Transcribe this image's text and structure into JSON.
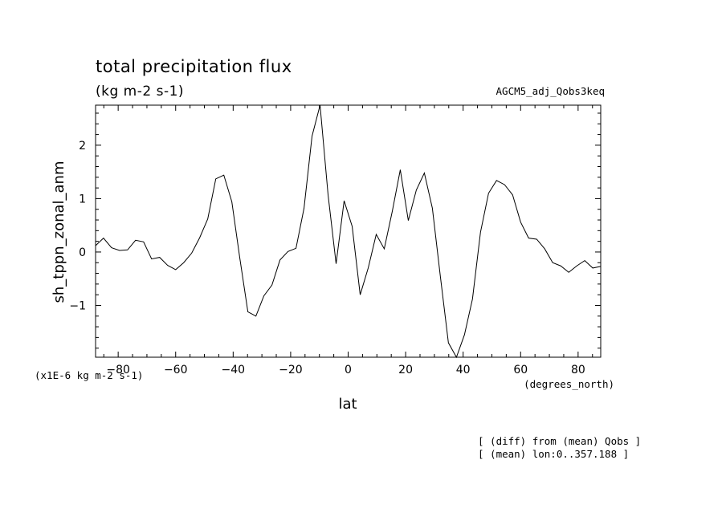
{
  "header": {
    "title": "total precipitation flux",
    "units": "(kg m-2 s-1)",
    "dataset": "AGCM5_adj_Qobs3keq"
  },
  "axes": {
    "ylabel": "sh_tppn_zonal_anm",
    "xlabel": "lat",
    "x_unit": "(degrees_north)",
    "y_scale_note": "(x1E-6 kg m-2 s-1)"
  },
  "notes": [
    "[ (diff) from (mean) Qobs ]",
    "[ (mean) lon:0..357.188 ]"
  ],
  "chart_data": {
    "type": "line",
    "title": "total precipitation flux",
    "xlabel": "lat",
    "ylabel": "sh_tppn_zonal_anm",
    "xlim": [
      -87.8638,
      87.8638
    ],
    "ylim": [
      -1.97,
      2.75
    ],
    "x_ticks": [
      -80,
      -60,
      -40,
      -20,
      0,
      20,
      40,
      60,
      80
    ],
    "y_ticks": [
      -1,
      0,
      1,
      2
    ],
    "grid": false,
    "series": [
      {
        "x": [
          -87.86,
          -85.1,
          -82.31,
          -79.53,
          -76.74,
          -73.95,
          -71.16,
          -68.37,
          -65.58,
          -62.79,
          -60.0,
          -57.21,
          -54.42,
          -51.63,
          -48.84,
          -46.04,
          -43.25,
          -40.46,
          -37.67,
          -34.88,
          -32.09,
          -29.3,
          -26.51,
          -23.72,
          -20.93,
          -18.14,
          -15.35,
          -12.56,
          -9.77,
          -6.98,
          -4.19,
          -1.4,
          1.4,
          4.19,
          6.98,
          9.77,
          12.56,
          15.35,
          18.14,
          20.93,
          23.72,
          26.51,
          29.3,
          32.09,
          34.88,
          37.67,
          40.46,
          43.25,
          46.04,
          48.84,
          51.63,
          54.42,
          57.21,
          60.0,
          62.79,
          65.58,
          68.37,
          71.16,
          73.95,
          76.74,
          79.53,
          82.31,
          85.1,
          87.86
        ],
        "values": [
          0.12,
          0.26,
          0.08,
          0.03,
          0.04,
          0.22,
          0.19,
          -0.13,
          -0.1,
          -0.25,
          -0.33,
          -0.2,
          -0.02,
          0.27,
          0.62,
          1.37,
          1.44,
          0.94,
          -0.12,
          -1.12,
          -1.2,
          -0.82,
          -0.62,
          -0.15,
          0.01,
          0.07,
          0.82,
          2.17,
          2.75,
          1.07,
          -0.22,
          0.96,
          0.48,
          -0.8,
          -0.3,
          0.33,
          0.06,
          0.76,
          1.54,
          0.59,
          1.16,
          1.48,
          0.82,
          -0.46,
          -1.7,
          -1.97,
          -1.55,
          -0.88,
          0.37,
          1.1,
          1.34,
          1.26,
          1.07,
          0.56,
          0.26,
          0.24,
          0.06,
          -0.2,
          -0.26,
          -0.38,
          -0.26,
          -0.16,
          -0.3,
          -0.27
        ]
      }
    ]
  }
}
